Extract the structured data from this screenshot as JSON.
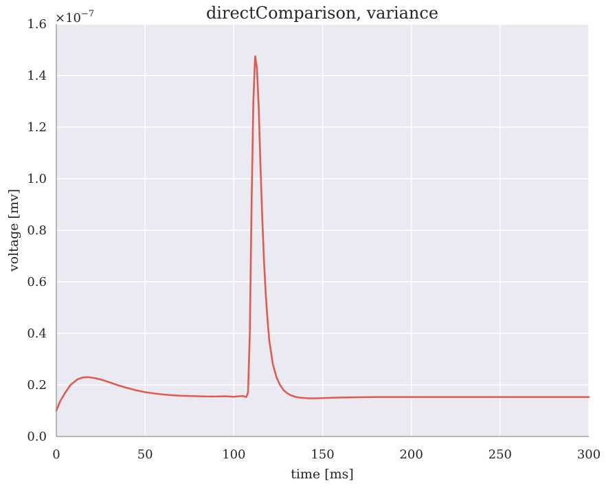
{
  "chart_data": {
    "type": "line",
    "title": "directComparison, variance",
    "xlabel": "time [ms]",
    "ylabel": "voltage [mv]",
    "y_offset_text": {
      "base": "×10",
      "exponent": "−7"
    },
    "xlim": [
      0,
      300
    ],
    "ylim": [
      0.0,
      1.6
    ],
    "xticks": [
      0,
      50,
      100,
      150,
      200,
      250,
      300
    ],
    "xtick_labels": [
      "0",
      "50",
      "100",
      "150",
      "200",
      "250",
      "300"
    ],
    "yticks": [
      0.0,
      0.2,
      0.4,
      0.6,
      0.8,
      1.0,
      1.2,
      1.4,
      1.6
    ],
    "ytick_labels": [
      "0.0",
      "0.2",
      "0.4",
      "0.6",
      "0.8",
      "1.0",
      "1.2",
      "1.4",
      "1.6"
    ],
    "grid": true,
    "background_color": "#eaeaf2",
    "grid_color": "#ffffff",
    "series": [
      {
        "color": "#e15a4e",
        "x": [
          0,
          2,
          5,
          8,
          12,
          15,
          18,
          22,
          26,
          30,
          35,
          40,
          45,
          50,
          55,
          60,
          65,
          70,
          75,
          80,
          85,
          90,
          95,
          100,
          103,
          105,
          106,
          107,
          108,
          109,
          110,
          111,
          112,
          113,
          114,
          115,
          116,
          117,
          118,
          119,
          120,
          122,
          124,
          126,
          128,
          130,
          132,
          135,
          138,
          142,
          146,
          150,
          160,
          170,
          180,
          200,
          220,
          250,
          280,
          300
        ],
        "y": [
          0.1,
          0.135,
          0.17,
          0.2,
          0.222,
          0.229,
          0.23,
          0.226,
          0.219,
          0.21,
          0.198,
          0.188,
          0.179,
          0.172,
          0.167,
          0.163,
          0.16,
          0.158,
          0.157,
          0.156,
          0.155,
          0.155,
          0.156,
          0.154,
          0.156,
          0.157,
          0.155,
          0.153,
          0.17,
          0.4,
          0.9,
          1.3,
          1.475,
          1.43,
          1.28,
          1.05,
          0.85,
          0.68,
          0.55,
          0.45,
          0.37,
          0.28,
          0.23,
          0.2,
          0.18,
          0.168,
          0.16,
          0.153,
          0.15,
          0.148,
          0.148,
          0.149,
          0.151,
          0.152,
          0.153,
          0.153,
          0.153,
          0.153,
          0.153,
          0.153
        ]
      }
    ]
  }
}
